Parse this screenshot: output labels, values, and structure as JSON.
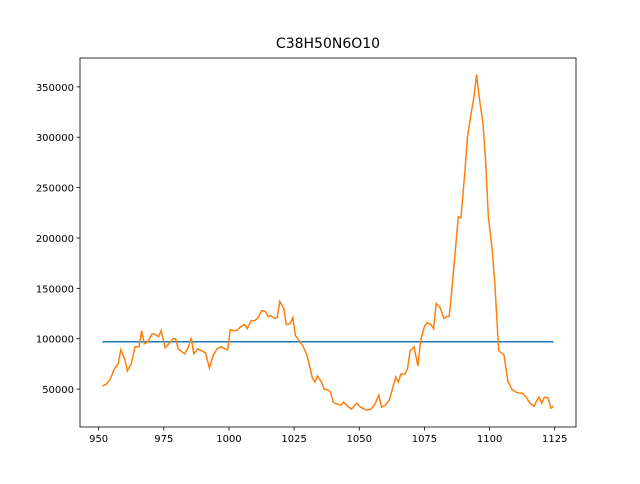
{
  "chart_data": {
    "type": "line",
    "title": "C38H50N6O10",
    "xlim": [
      942.85,
      1133.15
    ],
    "xticks": [
      950,
      975,
      1000,
      1025,
      1050,
      1075,
      1100,
      1125
    ],
    "ylim": [
      12350,
      378650
    ],
    "yticks": [
      50000,
      100000,
      150000,
      200000,
      250000,
      300000,
      350000
    ],
    "series": [
      {
        "color": "#1f77b4",
        "x": [
          951.5,
          1124.5
        ],
        "values": [
          97000,
          97000
        ]
      },
      {
        "color": "#ff7f0e",
        "x": [
          951.5,
          953,
          954.5,
          956,
          957.5,
          958.5,
          960,
          961,
          962.5,
          964,
          965.5,
          966.5,
          967.5,
          969,
          970.5,
          972,
          973,
          974,
          975.5,
          977,
          978.5,
          979.5,
          980.5,
          982,
          983,
          984.5,
          985.5,
          986.5,
          988,
          989.5,
          991,
          992.5,
          994,
          995.5,
          997,
          998.5,
          999.5,
          1000.5,
          1002,
          1003,
          1004.5,
          1006,
          1007,
          1008.5,
          1010,
          1011.5,
          1012.5,
          1014,
          1015,
          1016,
          1017.5,
          1018.5,
          1019.5,
          1021,
          1022,
          1023.5,
          1024.5,
          1025.5,
          1027,
          1028.5,
          1030,
          1031,
          1032,
          1033,
          1034,
          1035.5,
          1036.5,
          1038,
          1039,
          1040,
          1041.5,
          1043,
          1044,
          1045.5,
          1047,
          1048,
          1049,
          1050.5,
          1052,
          1053,
          1054.5,
          1056,
          1057.5,
          1058.5,
          1060,
          1061.5,
          1062.5,
          1064,
          1065,
          1066,
          1067.5,
          1068.5,
          1069.5,
          1071,
          1072.5,
          1073.5,
          1075,
          1076,
          1077.5,
          1078.5,
          1079.5,
          1081,
          1082.5,
          1083.5,
          1084.5,
          1085.5,
          1087,
          1088,
          1089,
          1090.5,
          1091.5,
          1093,
          1094,
          1095,
          1096,
          1097.5,
          1098.5,
          1099.5,
          1101,
          1102,
          1103.5,
          1104.5,
          1105.5,
          1107,
          1108.5,
          1110,
          1111.5,
          1112.5,
          1114,
          1115.5,
          1117,
          1118,
          1119,
          1120,
          1121,
          1122.5,
          1123.5,
          1124.5
        ],
        "values": [
          53000,
          55000,
          60000,
          70000,
          75000,
          89000,
          80000,
          68000,
          75000,
          92000,
          92000,
          108000,
          95000,
          97000,
          105000,
          104000,
          102000,
          108000,
          91000,
          95000,
          100000,
          100000,
          90000,
          87000,
          85000,
          92000,
          101000,
          85000,
          90000,
          88000,
          86000,
          71000,
          84000,
          90000,
          92000,
          90000,
          89000,
          109000,
          108000,
          108000,
          112000,
          114000,
          110000,
          118000,
          118000,
          122000,
          128000,
          127000,
          122000,
          123000,
          120000,
          121000,
          137000,
          130000,
          114000,
          115000,
          121000,
          103000,
          98000,
          92000,
          83000,
          72000,
          61000,
          57000,
          63000,
          57000,
          50000,
          49000,
          47000,
          37000,
          35000,
          34000,
          37000,
          33000,
          30000,
          33000,
          36000,
          32000,
          30000,
          29000,
          30000,
          35000,
          44000,
          32000,
          34000,
          39000,
          48000,
          62000,
          57000,
          65000,
          65000,
          70000,
          88000,
          92000,
          73000,
          98000,
          112000,
          116000,
          114000,
          110000,
          135000,
          131000,
          120000,
          122000,
          122000,
          148000,
          192000,
          221000,
          220000,
          265000,
          300000,
          325000,
          340000,
          362000,
          340000,
          313000,
          275000,
          222000,
          188000,
          155000,
          88000,
          86000,
          84000,
          58000,
          50000,
          47000,
          46000,
          46000,
          42000,
          36000,
          33000,
          38000,
          42000,
          36000,
          42000,
          41000,
          31000,
          33000
        ]
      }
    ]
  }
}
